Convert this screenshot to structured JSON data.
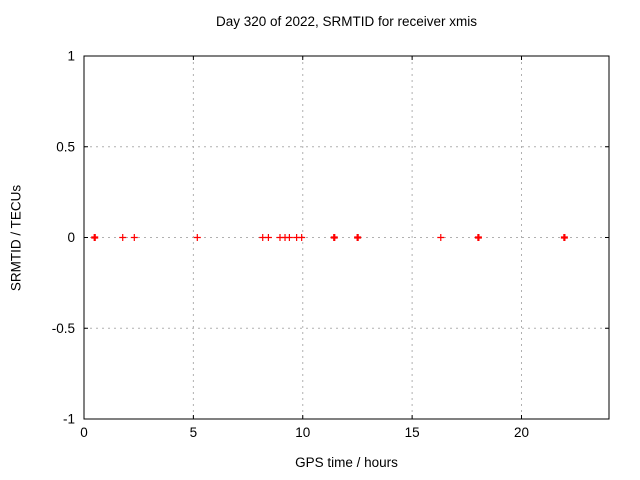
{
  "chart_data": {
    "type": "scatter",
    "title": "Day 320 of 2022, SRMTID for receiver xmis",
    "xlabel": "GPS time / hours",
    "ylabel": "SRMTID / TECUs",
    "xlim": [
      0,
      24
    ],
    "ylim": [
      -1,
      1
    ],
    "xticks": [
      0,
      5,
      10,
      15,
      20
    ],
    "yticks": [
      -1,
      -0.5,
      0,
      0.5,
      1
    ],
    "grid": true,
    "legend": "none",
    "marker": "plus",
    "marker_color": "#ff0000",
    "grid_color": "#b0b0b0",
    "border_color": "#000000",
    "background_color": "#ffffff",
    "series": [
      {
        "name": "SRMTID",
        "x": [
          0.49,
          1.77,
          2.3,
          5.18,
          8.17,
          8.43,
          8.96,
          9.19,
          9.39,
          9.72,
          9.95,
          11.44,
          12.51,
          16.31,
          18.03,
          21.96
        ],
        "y": [
          0,
          0,
          0,
          0,
          0,
          0,
          0,
          0,
          0,
          0,
          0,
          0,
          0,
          0,
          0,
          0
        ],
        "weights": [
          2,
          1,
          1,
          1,
          1,
          1,
          1,
          1,
          1,
          1,
          1,
          2,
          2,
          1,
          2,
          2
        ]
      }
    ]
  }
}
